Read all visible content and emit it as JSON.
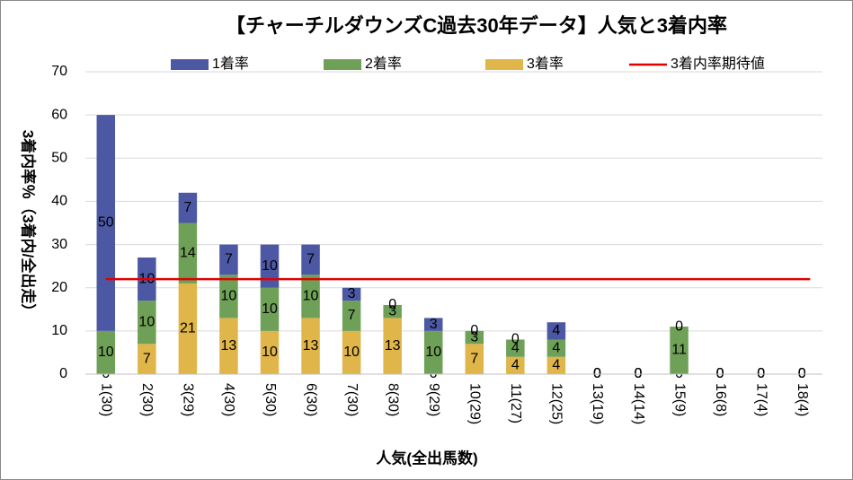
{
  "chart_data": {
    "type": "bar",
    "title": "【チャーチルダウンズC過去30年データ】人気と3着内率",
    "x_label": "人気(全出馬数)",
    "y_label": "3着内率％（3着内/全出走）",
    "categories": [
      "1(30)",
      "2(30)",
      "3(29)",
      "4(30)",
      "5(30)",
      "6(30)",
      "7(30)",
      "8(30)",
      "9(29)",
      "10(29)",
      "11(27)",
      "12(25)",
      "13(19)",
      "14(14)",
      "15(9)",
      "16(8)",
      "17(4)",
      "18(4)"
    ],
    "series": [
      {
        "name": "3着率",
        "color": "#e0b54a",
        "values": [
          0,
          7,
          21,
          13,
          10,
          13,
          10,
          13,
          0,
          7,
          4,
          4,
          0,
          0,
          0,
          0,
          0,
          0
        ]
      },
      {
        "name": "2着率",
        "color": "#6fa058",
        "values": [
          10,
          10,
          14,
          10,
          10,
          10,
          7,
          3,
          10,
          3,
          4,
          4,
          0,
          0,
          11,
          0,
          0,
          0
        ]
      },
      {
        "name": "1着率",
        "color": "#4c58a4",
        "values": [
          50,
          10,
          7,
          7,
          10,
          7,
          3,
          0,
          3,
          0,
          0,
          4,
          0,
          0,
          0,
          0,
          0,
          0
        ]
      }
    ],
    "legend_order": [
      "1着率",
      "2着率",
      "3着率"
    ],
    "expected": {
      "name": "3着内率期待値",
      "color": "#e00000",
      "value": 22
    },
    "ylim": [
      0,
      70
    ],
    "yticks": [
      0,
      10,
      20,
      30,
      40,
      50,
      60,
      70
    ],
    "grid": true
  }
}
